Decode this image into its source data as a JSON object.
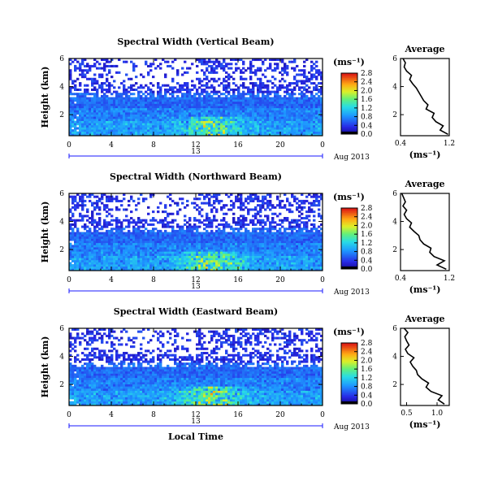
{
  "figure": {
    "date_label": "Aug 2013",
    "day_label": "13",
    "xlabel": "Local Time",
    "colorbar_unit": "(ms⁻¹)",
    "avg_title": "Average",
    "avg_xlabel": "(ms⁻¹)"
  },
  "chart_data": [
    {
      "type": "heatmap",
      "title": "Spectral Width (Vertical Beam)",
      "xlabel": "",
      "ylabel": "Height (km)",
      "xlim": [
        0,
        24
      ],
      "ylim": [
        0.5,
        6
      ],
      "x_ticks": [
        "0",
        "4",
        "8",
        "12",
        "16",
        "20",
        "0"
      ],
      "y_ticks": [
        "2",
        "4",
        "6"
      ],
      "colorbar": {
        "label": "(ms⁻¹)",
        "range": [
          0,
          2.8
        ],
        "ticks": [
          "0.0",
          "0.4",
          "0.8",
          "1.2",
          "1.6",
          "2.0",
          "2.4",
          "2.8"
        ]
      },
      "profile": {
        "title": "Average",
        "xlabel": "(ms⁻¹)",
        "xlim": [
          0.4,
          1.2
        ],
        "x_ticks": [
          "0.4",
          "1.2"
        ],
        "y_ticks": [
          "2",
          "4",
          "6"
        ],
        "height_km": [
          0.6,
          0.9,
          1.2,
          1.5,
          1.8,
          2.1,
          2.4,
          2.7,
          3.0,
          3.3,
          3.6,
          3.9,
          4.2,
          4.5,
          4.8,
          5.1,
          5.4,
          5.7,
          6.0
        ],
        "width_ms": [
          1.18,
          1.05,
          1.1,
          0.98,
          0.92,
          0.95,
          0.82,
          0.85,
          0.78,
          0.74,
          0.7,
          0.66,
          0.6,
          0.55,
          0.58,
          0.5,
          0.46,
          0.48,
          0.44
        ]
      }
    },
    {
      "type": "heatmap",
      "title": "Spectral Width (Northward Beam)",
      "xlabel": "",
      "ylabel": "Height (km)",
      "xlim": [
        0,
        24
      ],
      "ylim": [
        0.5,
        6
      ],
      "x_ticks": [
        "0",
        "4",
        "8",
        "12",
        "16",
        "20",
        "0"
      ],
      "y_ticks": [
        "2",
        "4",
        "6"
      ],
      "colorbar": {
        "label": "(ms⁻¹)",
        "range": [
          0,
          2.8
        ],
        "ticks": [
          "0.0",
          "0.4",
          "0.8",
          "1.2",
          "1.6",
          "2.0",
          "2.4",
          "2.8"
        ]
      },
      "profile": {
        "title": "Average",
        "xlabel": "(ms⁻¹)",
        "xlim": [
          0.4,
          1.2
        ],
        "x_ticks": [
          "0.4",
          "1.2"
        ],
        "y_ticks": [
          "2",
          "4",
          "6"
        ],
        "height_km": [
          0.6,
          0.9,
          1.2,
          1.5,
          1.8,
          2.1,
          2.4,
          2.7,
          3.0,
          3.3,
          3.6,
          3.9,
          4.2,
          4.5,
          4.8,
          5.1,
          5.4,
          5.7,
          6.0
        ],
        "width_ms": [
          1.15,
          1.0,
          1.12,
          0.95,
          0.88,
          0.9,
          0.78,
          0.72,
          0.7,
          0.62,
          0.55,
          0.58,
          0.5,
          0.46,
          0.5,
          0.44,
          0.48,
          0.45,
          0.42
        ]
      }
    },
    {
      "type": "heatmap",
      "title": "Spectral Width (Eastward Beam)",
      "xlabel": "Local Time",
      "ylabel": "Height (km)",
      "xlim": [
        0,
        24
      ],
      "ylim": [
        0.5,
        6
      ],
      "x_ticks": [
        "0",
        "4",
        "8",
        "12",
        "16",
        "20",
        "0"
      ],
      "y_ticks": [
        "2",
        "4",
        "6"
      ],
      "colorbar": {
        "label": "(ms⁻¹)",
        "range": [
          0,
          2.8
        ],
        "ticks": [
          "0.0",
          "0.4",
          "0.8",
          "1.2",
          "1.6",
          "2.0",
          "2.4",
          "2.8"
        ]
      },
      "profile": {
        "title": "Average",
        "xlabel": "(ms⁻¹)",
        "xlim": [
          0.4,
          1.2
        ],
        "x_ticks": [
          "0.5",
          "1.0"
        ],
        "y_ticks": [
          "2",
          "4",
          "6"
        ],
        "height_km": [
          0.6,
          0.9,
          1.2,
          1.5,
          1.8,
          2.1,
          2.4,
          2.7,
          3.0,
          3.3,
          3.6,
          3.9,
          4.2,
          4.5,
          4.8,
          5.1,
          5.4,
          5.7,
          6.0
        ],
        "width_ms": [
          1.12,
          1.02,
          1.08,
          0.9,
          0.82,
          0.86,
          0.75,
          0.68,
          0.66,
          0.6,
          0.56,
          0.62,
          0.52,
          0.48,
          0.54,
          0.5,
          0.47,
          0.52,
          0.46
        ]
      }
    }
  ]
}
